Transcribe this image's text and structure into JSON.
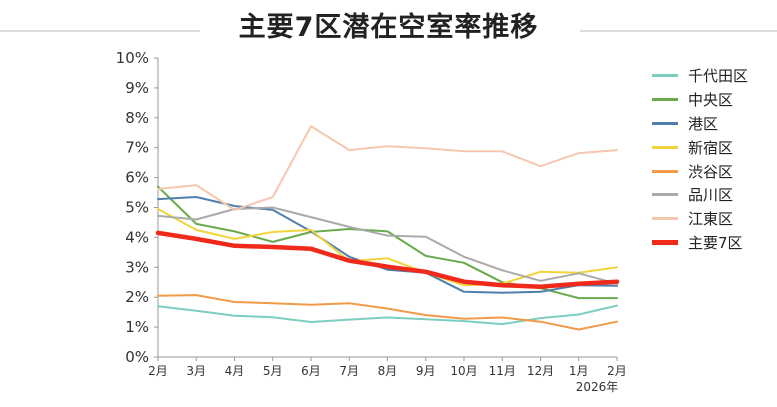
{
  "chart_data": {
    "type": "line",
    "title": "主要7区潜在空室率推移",
    "xlabel": "",
    "ylabel": "",
    "categories": [
      "2月",
      "3月",
      "4月",
      "5月",
      "6月",
      "7月",
      "8月",
      "9月",
      "10月",
      "11月",
      "12月",
      "1月",
      "2月"
    ],
    "year_note": "2026年",
    "year_note_index": 12,
    "ylim": [
      0,
      10
    ],
    "yticks": [
      "0%",
      "1%",
      "2%",
      "3%",
      "4%",
      "5%",
      "6%",
      "7%",
      "8%",
      "9%",
      "10%"
    ],
    "grid": false,
    "legend_position": "right",
    "series": [
      {
        "name": "千代田区",
        "color": "#7ecdc1",
        "width": 2,
        "values": [
          1.7,
          1.55,
          1.38,
          1.33,
          1.17,
          1.25,
          1.32,
          1.26,
          1.2,
          1.1,
          1.3,
          1.42,
          1.72
        ]
      },
      {
        "name": "中央区",
        "color": "#6aaa4c",
        "width": 2,
        "values": [
          5.7,
          4.45,
          4.2,
          3.85,
          4.18,
          4.28,
          4.2,
          3.38,
          3.15,
          2.5,
          2.3,
          1.97,
          1.97
        ]
      },
      {
        "name": "港区",
        "color": "#4f7fae",
        "width": 2,
        "values": [
          5.28,
          5.35,
          5.05,
          4.92,
          4.2,
          3.35,
          2.92,
          2.82,
          2.18,
          2.15,
          2.18,
          2.4,
          2.38
        ]
      },
      {
        "name": "新宿区",
        "color": "#f0d43a",
        "width": 2,
        "values": [
          4.95,
          4.25,
          3.95,
          4.18,
          4.25,
          3.2,
          3.3,
          2.82,
          2.4,
          2.45,
          2.85,
          2.82,
          3.0
        ]
      },
      {
        "name": "渋谷区",
        "color": "#f09a4a",
        "width": 2,
        "values": [
          2.05,
          2.07,
          1.84,
          1.8,
          1.75,
          1.8,
          1.62,
          1.4,
          1.28,
          1.32,
          1.18,
          0.92,
          1.18
        ]
      },
      {
        "name": "品川区",
        "color": "#aaaaaa",
        "width": 2,
        "values": [
          4.72,
          4.6,
          4.95,
          5.0,
          4.68,
          4.35,
          4.06,
          4.02,
          3.35,
          2.9,
          2.55,
          2.8,
          2.45
        ]
      },
      {
        "name": "江東区",
        "color": "#f5c7ad",
        "width": 2,
        "values": [
          5.62,
          5.75,
          4.92,
          5.35,
          7.72,
          6.92,
          7.05,
          6.98,
          6.88,
          6.88,
          6.38,
          6.82,
          6.92
        ]
      },
      {
        "name": "主要7区",
        "color": "#f02a1a",
        "width": 4.5,
        "values": [
          4.15,
          3.95,
          3.72,
          3.68,
          3.62,
          3.22,
          3.02,
          2.85,
          2.52,
          2.4,
          2.35,
          2.45,
          2.52
        ]
      }
    ]
  }
}
